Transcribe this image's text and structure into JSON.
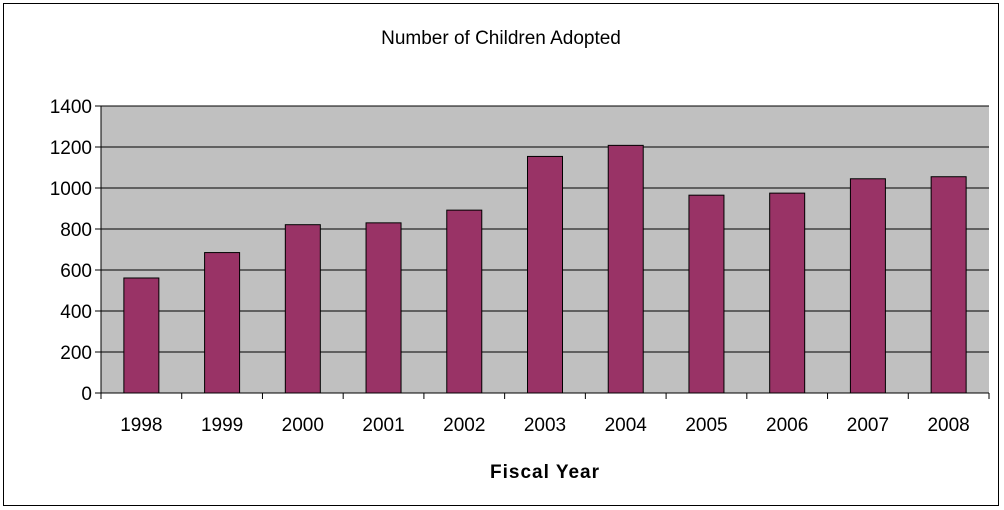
{
  "chart_data": {
    "type": "bar",
    "title": "Number of Children Adopted",
    "xlabel": "Fiscal Year",
    "ylabel": "",
    "categories": [
      "1998",
      "1999",
      "2000",
      "2001",
      "2002",
      "2003",
      "2004",
      "2005",
      "2006",
      "2007",
      "2008"
    ],
    "values": [
      561,
      685,
      821,
      830,
      892,
      1154,
      1208,
      965,
      975,
      1045,
      1055
    ],
    "ylim": [
      0,
      1400
    ],
    "yticks": [
      0,
      200,
      400,
      600,
      800,
      1000,
      1200,
      1400
    ],
    "grid": true,
    "legend": "none",
    "colors": {
      "bar": "#993366",
      "plot_bg": "#c0c0c0",
      "grid": "#000000"
    }
  }
}
